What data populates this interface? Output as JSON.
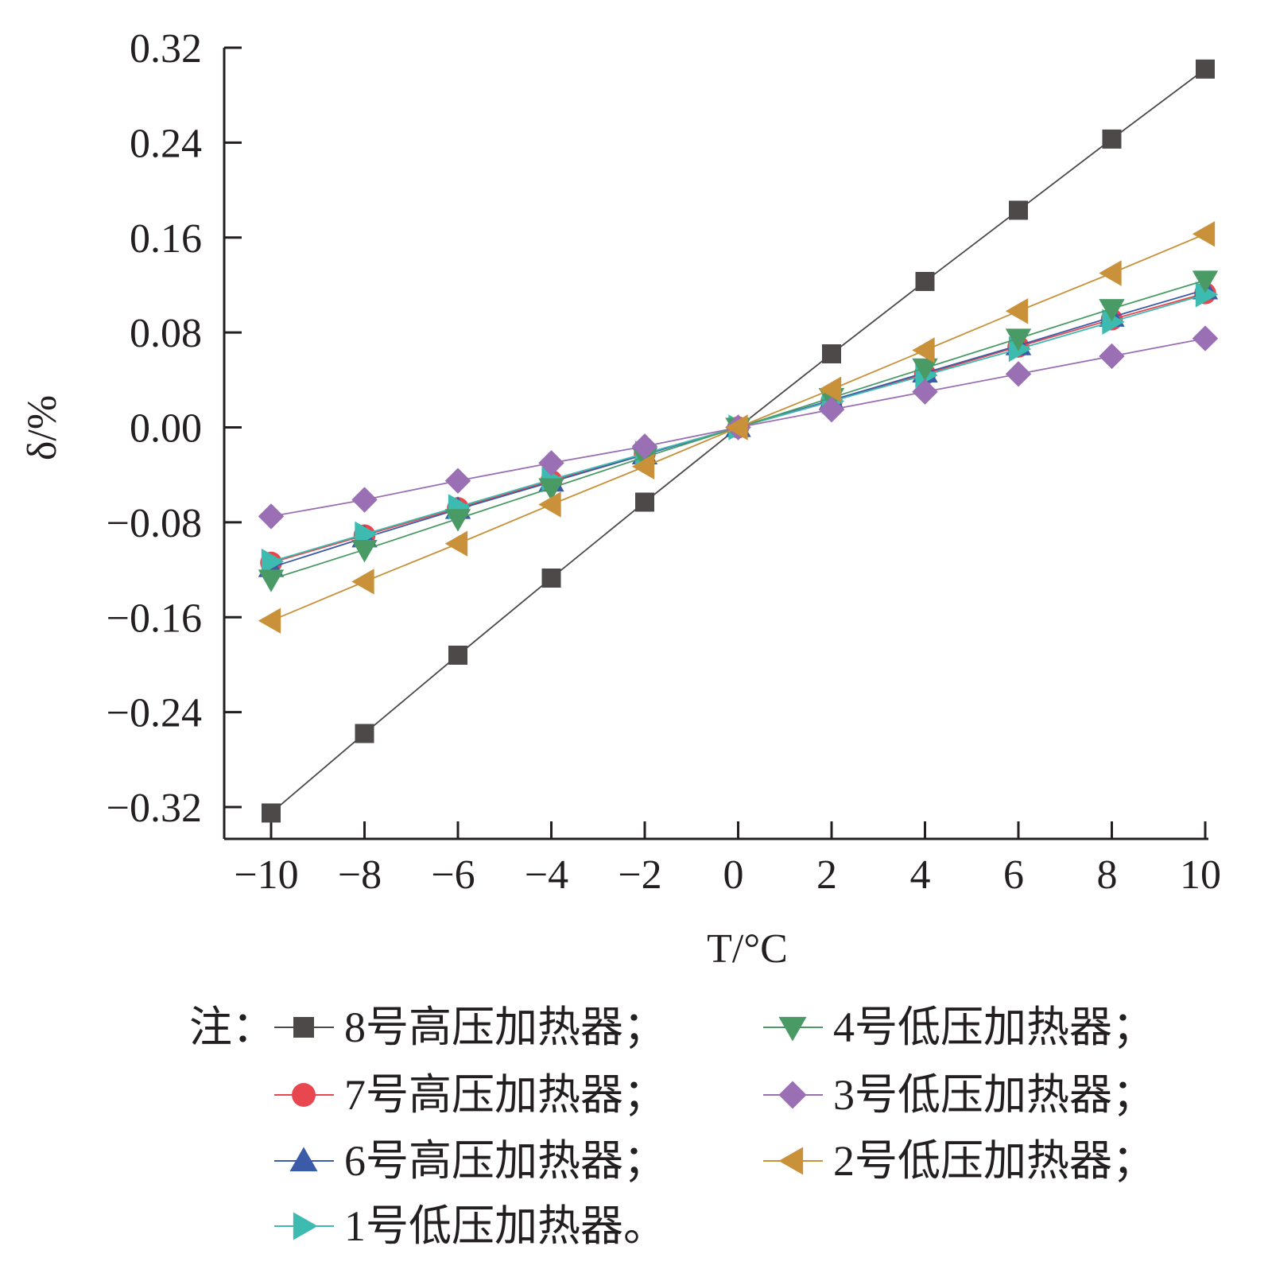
{
  "chart_data": {
    "type": "line",
    "xlabel": "T/°C",
    "ylabel": "δ/%",
    "xlim": [
      -10,
      10
    ],
    "ylim": [
      -0.32,
      0.32
    ],
    "x": [
      -10,
      -8,
      -6,
      -4,
      -2,
      0,
      2,
      4,
      6,
      8,
      10
    ],
    "x_ticks": [
      "−10",
      "−8",
      "−6",
      "−4",
      "−2",
      "0",
      "2",
      "4",
      "6",
      "8",
      "10"
    ],
    "y_ticks": [
      "0.32",
      "0.24",
      "0.16",
      "0.08",
      "0.00",
      "−0.08",
      "−0.16",
      "−0.24",
      "−0.32"
    ],
    "y_tick_values": [
      0.32,
      0.24,
      0.16,
      0.08,
      0.0,
      -0.08,
      -0.16,
      -0.24,
      -0.32
    ],
    "legend_prefix": "注：",
    "legend_placement": "bottom",
    "grid": false,
    "series": [
      {
        "name": "8号高压加热器；",
        "marker": "square",
        "color": "#4d4949",
        "values": [
          -0.325,
          -0.258,
          -0.192,
          -0.127,
          -0.063,
          0.0,
          0.062,
          0.123,
          0.183,
          0.243,
          0.302
        ]
      },
      {
        "name": "7号高压加热器；",
        "marker": "circle",
        "color": "#e8474f",
        "values": [
          -0.114,
          -0.091,
          -0.068,
          -0.045,
          -0.022,
          0.0,
          0.022,
          0.045,
          0.068,
          0.091,
          0.113
        ]
      },
      {
        "name": "6号高压加热器；",
        "marker": "triangle-up",
        "color": "#3b5ba9",
        "values": [
          -0.118,
          -0.093,
          -0.069,
          -0.046,
          -0.023,
          0.0,
          0.023,
          0.046,
          0.069,
          0.093,
          0.116
        ]
      },
      {
        "name": "1号低压加热器。",
        "marker": "triangle-right",
        "color": "#3dbbb1",
        "values": [
          -0.113,
          -0.09,
          -0.067,
          -0.044,
          -0.022,
          0.0,
          0.022,
          0.044,
          0.066,
          0.089,
          0.112
        ]
      },
      {
        "name": "4号低压加热器；",
        "marker": "triangle-down",
        "color": "#4a9a66",
        "values": [
          -0.128,
          -0.103,
          -0.077,
          -0.051,
          -0.025,
          0.0,
          0.025,
          0.05,
          0.075,
          0.1,
          0.124
        ]
      },
      {
        "name": "3号低压加热器；",
        "marker": "diamond",
        "color": "#9a6fb3",
        "values": [
          -0.075,
          -0.061,
          -0.045,
          -0.03,
          -0.016,
          0.0,
          0.015,
          0.03,
          0.045,
          0.06,
          0.075
        ]
      },
      {
        "name": "2号低压加热器；",
        "marker": "triangle-left",
        "color": "#c8913a",
        "values": [
          -0.163,
          -0.13,
          -0.098,
          -0.065,
          -0.033,
          0.0,
          0.032,
          0.065,
          0.098,
          0.13,
          0.163
        ]
      }
    ]
  }
}
